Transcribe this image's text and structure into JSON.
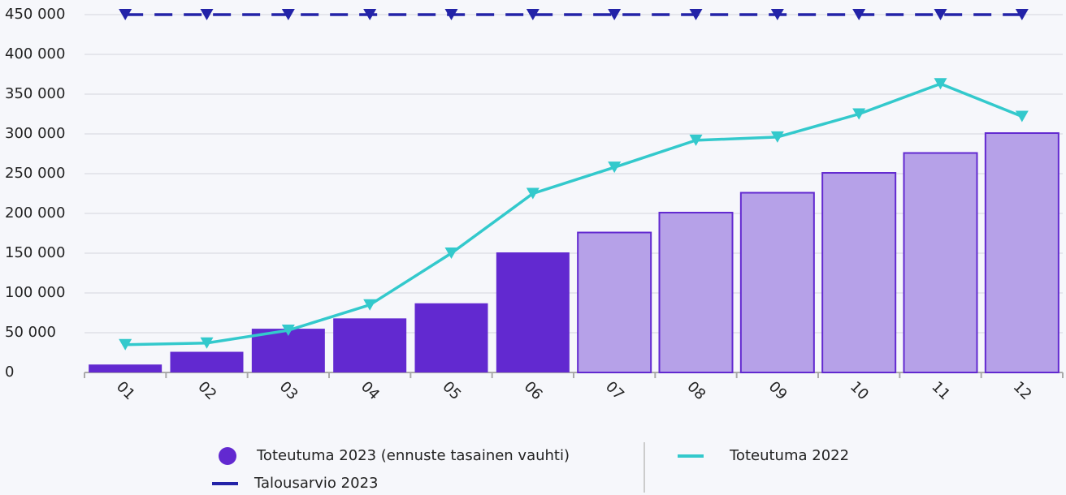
{
  "chart_data": {
    "type": "bar-line",
    "categories": [
      "01",
      "02",
      "03",
      "04",
      "05",
      "06",
      "07",
      "08",
      "09",
      "10",
      "11",
      "12"
    ],
    "series": [
      {
        "name": "Toteutuma 2023 (ennuste tasainen vauhti)",
        "kind": "bar",
        "color": "#6229d0",
        "bar_colors": [
          "#6229d0",
          "#6229d0",
          "#6229d0",
          "#6229d0",
          "#6229d0",
          "#6229d0",
          "#b6a1e8",
          "#b6a1e8",
          "#b6a1e8",
          "#b6a1e8",
          "#b6a1e8",
          "#b6a1e8"
        ],
        "values": [
          10000,
          26000,
          55000,
          68000,
          87000,
          151000,
          176000,
          201000,
          226000,
          251000,
          276000,
          301000
        ]
      },
      {
        "name": "Toteutuma 2022",
        "kind": "line",
        "color": "#33c9cc",
        "values": [
          35000,
          37000,
          53000,
          85000,
          150000,
          225000,
          258000,
          292000,
          296000,
          325000,
          363000,
          322000
        ]
      },
      {
        "name": "Talousarvio 2023",
        "kind": "dashed",
        "color": "#2323a8",
        "values": [
          450000,
          450000,
          450000,
          450000,
          450000,
          450000,
          450000,
          450000,
          450000,
          450000,
          450000,
          450000
        ]
      }
    ],
    "ylim": [
      0,
      450000
    ],
    "yticks": [
      0,
      {
        "value": 50000,
        "label": "50 000"
      },
      {
        "value": 100000,
        "label": "100 000"
      },
      {
        "value": 150000,
        "label": "150 000"
      },
      {
        "value": 200000,
        "label": "200 000"
      },
      {
        "value": 250000,
        "label": "250 000"
      },
      {
        "value": 300000,
        "label": "300 000"
      },
      {
        "value": 350000,
        "label": "350 000"
      },
      {
        "value": 400000,
        "label": "400 000"
      },
      {
        "value": 450000,
        "label": "450 000"
      }
    ],
    "grid": true
  }
}
